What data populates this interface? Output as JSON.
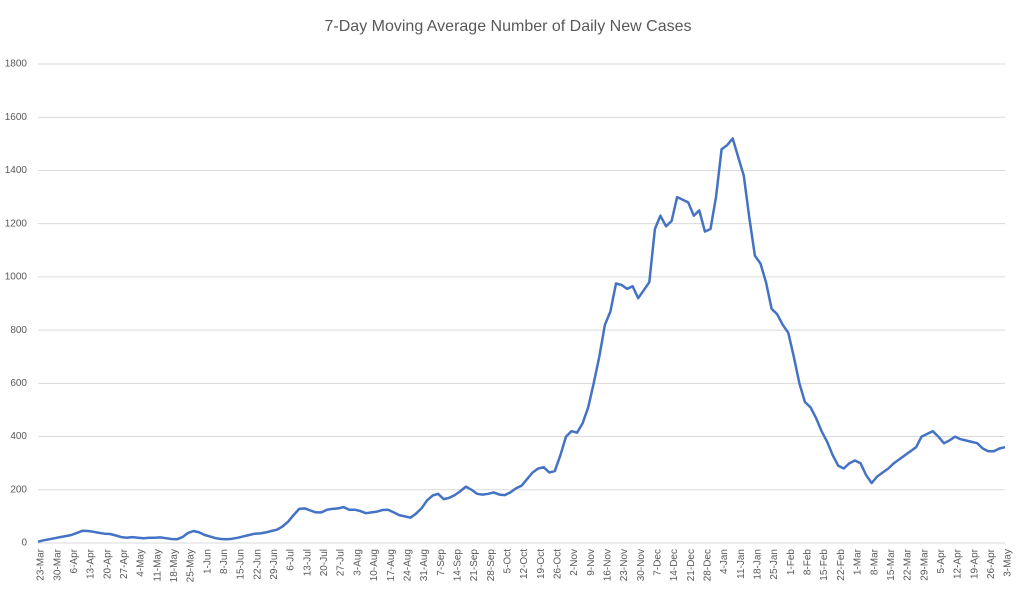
{
  "chart_data": {
    "type": "line",
    "title": "7-Day Moving Average Number of Daily New Cases",
    "categories": [
      "23-Mar",
      null,
      null,
      "30-Mar",
      null,
      null,
      "6-Apr",
      null,
      null,
      "13-Apr",
      null,
      null,
      "20-Apr",
      null,
      null,
      "27-Apr",
      null,
      null,
      "4-May",
      null,
      null,
      "11-May",
      null,
      null,
      "18-May",
      null,
      null,
      "25-May",
      null,
      null,
      "1-Jun",
      null,
      null,
      "8-Jun",
      null,
      null,
      "15-Jun",
      null,
      null,
      "22-Jun",
      null,
      null,
      "29-Jun",
      null,
      null,
      "6-Jul",
      null,
      null,
      "13-Jul",
      null,
      null,
      "20-Jul",
      null,
      null,
      "27-Jul",
      null,
      null,
      "3-Aug",
      null,
      null,
      "10-Aug",
      null,
      null,
      "17-Aug",
      null,
      null,
      "24-Aug",
      null,
      null,
      "31-Aug",
      null,
      null,
      "7-Sep",
      null,
      null,
      "14-Sep",
      null,
      null,
      "21-Sep",
      null,
      null,
      "28-Sep",
      null,
      null,
      "5-Oct",
      null,
      null,
      "12-Oct",
      null,
      null,
      "19-Oct",
      null,
      null,
      "26-Oct",
      null,
      null,
      "2-Nov",
      null,
      null,
      "9-Nov",
      null,
      null,
      "16-Nov",
      null,
      null,
      "23-Nov",
      null,
      null,
      "30-Nov",
      null,
      null,
      "7-Dec",
      null,
      null,
      "14-Dec",
      null,
      null,
      "21-Dec",
      null,
      null,
      "28-Dec",
      null,
      null,
      "4-Jan",
      null,
      null,
      "11-Jan",
      null,
      null,
      "18-Jan",
      null,
      null,
      "25-Jan",
      null,
      null,
      "1-Feb",
      null,
      null,
      "8-Feb",
      null,
      null,
      "15-Feb",
      null,
      null,
      "22-Feb",
      null,
      null,
      "1-Mar",
      null,
      null,
      "8-Mar",
      null,
      null,
      "15-Mar",
      null,
      null,
      "22-Mar",
      null,
      null,
      "29-Mar",
      null,
      null,
      "5-Apr",
      null,
      null,
      "12-Apr",
      null,
      null,
      "19-Apr",
      null,
      null,
      "26-Apr",
      null,
      null,
      "3-May"
    ],
    "values": [
      5,
      10,
      14,
      18,
      22,
      26,
      30,
      38,
      46,
      45,
      42,
      38,
      35,
      34,
      28,
      22,
      20,
      22,
      20,
      18,
      20,
      20,
      21,
      18,
      15,
      14,
      22,
      38,
      45,
      40,
      30,
      24,
      18,
      15,
      14,
      16,
      20,
      25,
      30,
      35,
      36,
      40,
      45,
      50,
      62,
      80,
      105,
      128,
      130,
      122,
      115,
      115,
      125,
      128,
      130,
      135,
      125,
      125,
      120,
      112,
      115,
      118,
      124,
      125,
      115,
      105,
      100,
      95,
      110,
      130,
      160,
      178,
      185,
      165,
      170,
      180,
      195,
      212,
      200,
      185,
      182,
      185,
      190,
      182,
      180,
      190,
      205,
      215,
      240,
      265,
      280,
      285,
      265,
      270,
      330,
      400,
      420,
      415,
      450,
      510,
      600,
      700,
      820,
      870,
      975,
      970,
      955,
      965,
      920,
      950,
      980,
      1180,
      1230,
      1190,
      1210,
      1300,
      1290,
      1280,
      1230,
      1250,
      1170,
      1180,
      1300,
      1480,
      1495,
      1520,
      1450,
      1380,
      1220,
      1080,
      1050,
      980,
      880,
      860,
      820,
      790,
      700,
      600,
      530,
      510,
      470,
      420,
      380,
      330,
      290,
      280,
      300,
      310,
      300,
      255,
      225,
      250,
      265,
      280,
      300,
      315,
      330,
      345,
      360,
      400,
      410,
      420,
      400,
      375,
      385,
      400,
      390,
      385,
      380,
      375,
      355,
      345,
      345,
      355,
      360
    ],
    "color": "#4472c4",
    "ylim": [
      0,
      1800
    ],
    "yticks": [
      0,
      200,
      400,
      600,
      800,
      1000,
      1200,
      1400,
      1600,
      1800
    ],
    "grid": true
  }
}
